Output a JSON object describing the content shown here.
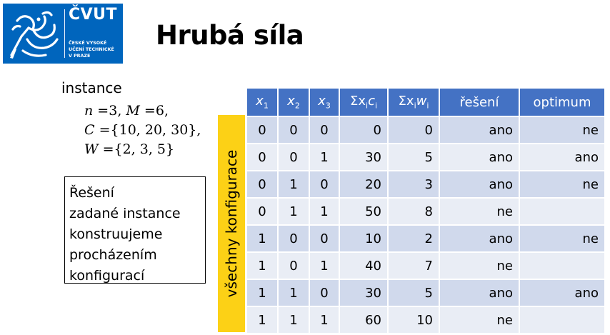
{
  "logo": {
    "brand": "ČVUT",
    "lines": [
      "ČESKÉ VYSOKÉ",
      "UČENÍ TECHNICKÉ",
      "V PRAZE"
    ],
    "color": "#0065bd"
  },
  "title": "Hrubá síla",
  "instance": {
    "label": "instance",
    "n": "3",
    "M": "6",
    "C": "{10, 20, 30},",
    "W": "{2, 3, 5}"
  },
  "solution_text": [
    "Řešení",
    "zadané instance",
    "konstruujeme",
    "procházením",
    "konfigurací"
  ],
  "sidebar_label": "všechny konfigurace",
  "table": {
    "header": {
      "x1": "x",
      "x1_sub": "1",
      "x2": "x",
      "x2_sub": "2",
      "x3": "x",
      "x3_sub": "3",
      "sum_c": "Σx",
      "sum_c_sub": "i",
      "sum_c_var": "c",
      "sum_c_sub2": "i",
      "sum_w": "Σx",
      "sum_w_sub": "i",
      "sum_w_var": "w",
      "sum_w_sub2": "i",
      "reseni": "řešení",
      "optimum": "optimum"
    },
    "rows": [
      {
        "x1": "0",
        "x2": "0",
        "x3": "0",
        "sc": "0",
        "sw": "0",
        "res": "ano",
        "opt": "ne"
      },
      {
        "x1": "0",
        "x2": "0",
        "x3": "1",
        "sc": "30",
        "sw": "5",
        "res": "ano",
        "opt": "ano"
      },
      {
        "x1": "0",
        "x2": "1",
        "x3": "0",
        "sc": "20",
        "sw": "3",
        "res": "ano",
        "opt": "ne"
      },
      {
        "x1": "0",
        "x2": "1",
        "x3": "1",
        "sc": "50",
        "sw": "8",
        "res": "ne",
        "opt": ""
      },
      {
        "x1": "1",
        "x2": "0",
        "x3": "0",
        "sc": "10",
        "sw": "2",
        "res": "ano",
        "opt": "ne"
      },
      {
        "x1": "1",
        "x2": "0",
        "x3": "1",
        "sc": "40",
        "sw": "7",
        "res": "ne",
        "opt": ""
      },
      {
        "x1": "1",
        "x2": "1",
        "x3": "0",
        "sc": "30",
        "sw": "5",
        "res": "ano",
        "opt": "ano"
      },
      {
        "x1": "1",
        "x2": "1",
        "x3": "1",
        "sc": "60",
        "sw": "10",
        "res": "ne",
        "opt": ""
      }
    ]
  }
}
